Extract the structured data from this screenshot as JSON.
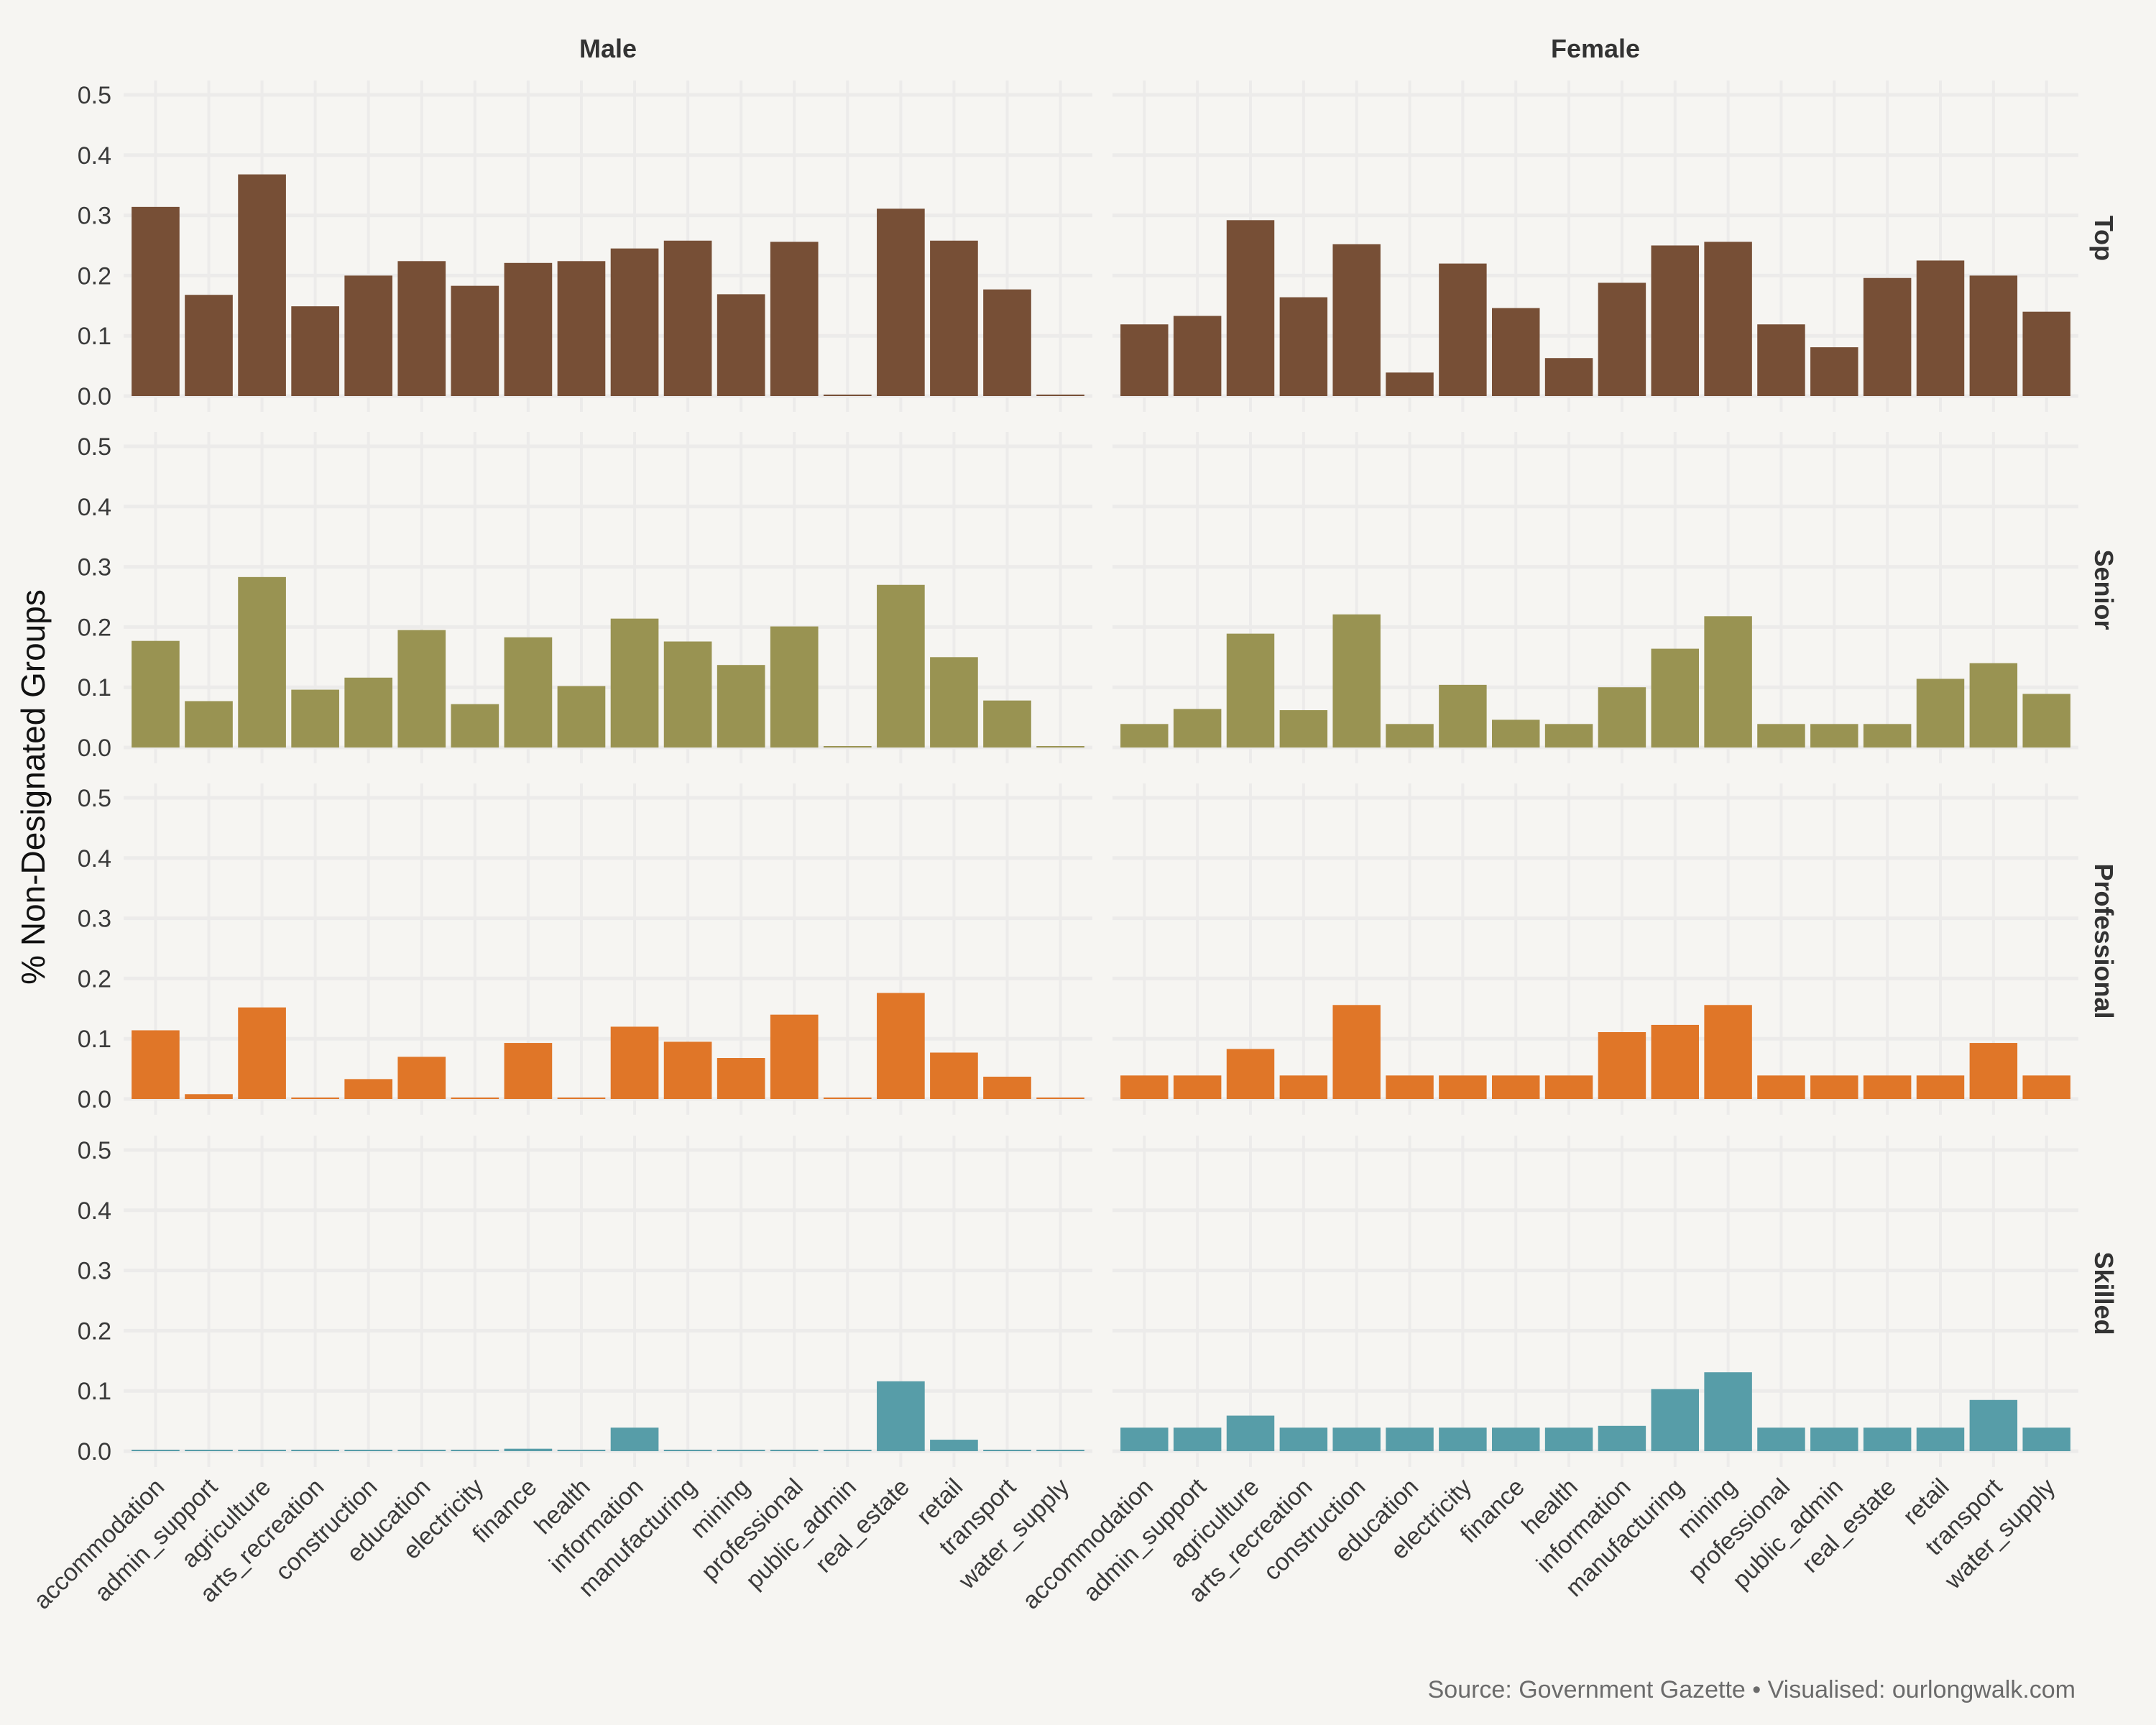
{
  "chart_data": {
    "type": "bar",
    "ylabel": "% Non-Designated Groups",
    "xlabel": "",
    "ylim": [
      0,
      0.5
    ],
    "yticks": [
      "0.0",
      "0.1",
      "0.2",
      "0.3",
      "0.4",
      "0.5"
    ],
    "grid": true,
    "caption": "Source: Government Gazette • Visualised: ourlongwalk.com",
    "columns": [
      "Male",
      "Female"
    ],
    "rows": [
      "Top",
      "Senior",
      "Professional",
      "Skilled"
    ],
    "row_colors": {
      "Top": "#774F36",
      "Senior": "#999352",
      "Professional": "#E07628",
      "Skilled": "#579DA8"
    },
    "background": "#F6F5F2",
    "categories": [
      "accommodation",
      "admin_support",
      "agriculture",
      "arts_recreation",
      "construction",
      "education",
      "electricity",
      "finance",
      "health",
      "information",
      "manufacturing",
      "mining",
      "professional",
      "public_admin",
      "real_estate",
      "retail",
      "transport",
      "water_supply"
    ],
    "series": {
      "Male": {
        "Top": [
          0.314,
          0.168,
          0.368,
          0.149,
          0.2,
          0.224,
          0.183,
          0.221,
          0.224,
          0.245,
          0.258,
          0.169,
          0.256,
          0.002,
          0.311,
          0.258,
          0.177,
          0.002
        ],
        "Senior": [
          0.177,
          0.077,
          0.283,
          0.096,
          0.116,
          0.195,
          0.072,
          0.183,
          0.102,
          0.214,
          0.176,
          0.137,
          0.201,
          0.001,
          0.27,
          0.15,
          0.078,
          0.001
        ],
        "Professional": [
          0.114,
          0.008,
          0.152,
          0.001,
          0.033,
          0.07,
          0.001,
          0.093,
          0.001,
          0.12,
          0.095,
          0.068,
          0.14,
          0.001,
          0.176,
          0.077,
          0.037,
          0.001
        ],
        "Skilled": [
          0.001,
          0.001,
          0.001,
          0.001,
          0.001,
          0.001,
          0.001,
          0.004,
          0.001,
          0.039,
          0.001,
          0.001,
          0.001,
          0.001,
          0.116,
          0.019,
          0.001,
          0.001
        ]
      },
      "Female": {
        "Top": [
          0.119,
          0.133,
          0.292,
          0.164,
          0.252,
          0.039,
          0.22,
          0.146,
          0.063,
          0.188,
          0.25,
          0.256,
          0.119,
          0.081,
          0.196,
          0.225,
          0.2,
          0.14
        ],
        "Senior": [
          0.039,
          0.064,
          0.189,
          0.062,
          0.221,
          0.039,
          0.104,
          0.046,
          0.039,
          0.1,
          0.164,
          0.218,
          0.039,
          0.039,
          0.039,
          0.114,
          0.14,
          0.089
        ],
        "Professional": [
          0.039,
          0.039,
          0.083,
          0.039,
          0.156,
          0.039,
          0.039,
          0.039,
          0.039,
          0.111,
          0.123,
          0.156,
          0.039,
          0.039,
          0.039,
          0.039,
          0.093,
          0.039
        ],
        "Skilled": [
          0.039,
          0.039,
          0.059,
          0.039,
          0.039,
          0.039,
          0.039,
          0.039,
          0.039,
          0.042,
          0.103,
          0.131,
          0.039,
          0.039,
          0.039,
          0.039,
          0.085,
          0.039
        ]
      }
    }
  }
}
